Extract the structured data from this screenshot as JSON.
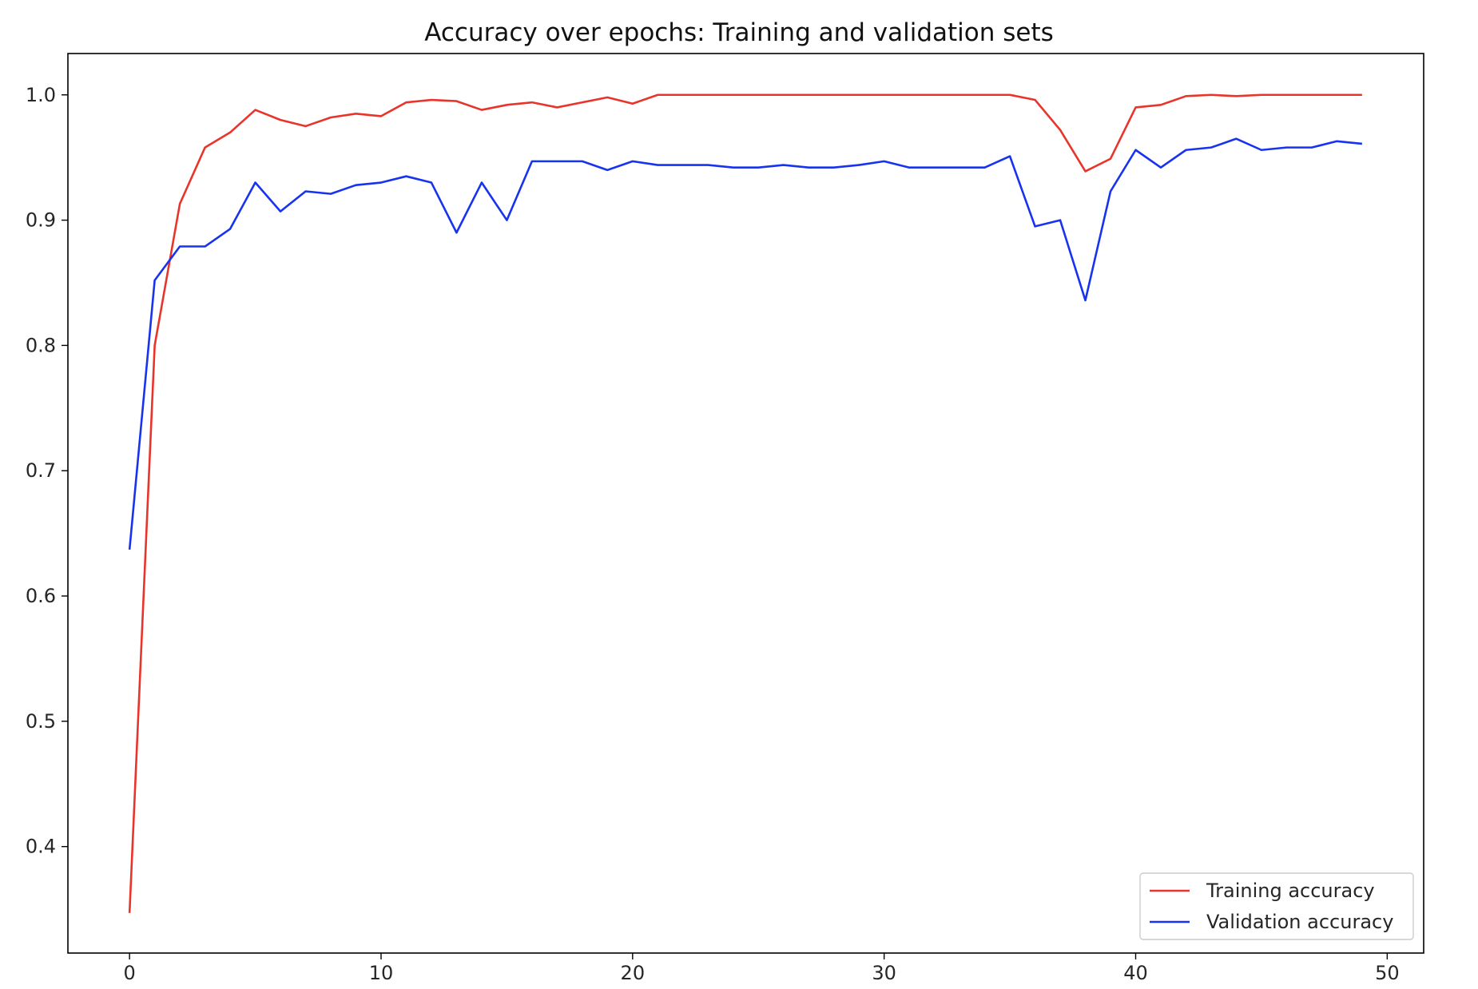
{
  "chart_data": {
    "type": "line",
    "title": "Accuracy over epochs: Training and validation sets",
    "xlabel": "",
    "ylabel": "",
    "xlim": [
      -2.45,
      51.45
    ],
    "ylim": [
      0.315,
      1.033
    ],
    "x_ticks": [
      0,
      10,
      20,
      30,
      40,
      50
    ],
    "y_ticks": [
      0.4,
      0.5,
      0.6,
      0.7,
      0.8,
      0.9,
      1.0
    ],
    "x_tick_labels": [
      "0",
      "10",
      "20",
      "30",
      "40",
      "50"
    ],
    "y_tick_labels": [
      "0.4",
      "0.5",
      "0.6",
      "0.7",
      "0.8",
      "0.9",
      "1.0"
    ],
    "grid": false,
    "legend_position": "lower-right",
    "x": [
      0,
      1,
      2,
      3,
      4,
      5,
      6,
      7,
      8,
      9,
      10,
      11,
      12,
      13,
      14,
      15,
      16,
      17,
      18,
      19,
      20,
      21,
      22,
      23,
      24,
      25,
      26,
      27,
      28,
      29,
      30,
      31,
      32,
      33,
      34,
      35,
      36,
      37,
      38,
      39,
      40,
      41,
      42,
      43,
      44,
      45,
      46,
      47,
      48,
      49
    ],
    "series": [
      {
        "name": "Training accuracy",
        "color": "#e8352b",
        "values": [
          0.347,
          0.8,
          0.913,
          0.958,
          0.97,
          0.988,
          0.98,
          0.975,
          0.982,
          0.985,
          0.983,
          0.994,
          0.996,
          0.995,
          0.988,
          0.992,
          0.994,
          0.99,
          0.994,
          0.998,
          0.993,
          1.0,
          1.0,
          1.0,
          1.0,
          1.0,
          1.0,
          1.0,
          1.0,
          1.0,
          1.0,
          1.0,
          1.0,
          1.0,
          1.0,
          1.0,
          0.996,
          0.972,
          0.939,
          0.949,
          0.99,
          0.992,
          0.999,
          1.0,
          0.999,
          1.0,
          1.0,
          1.0,
          1.0,
          1.0
        ]
      },
      {
        "name": "Validation accuracy",
        "color": "#1833f0",
        "values": [
          0.637,
          0.852,
          0.879,
          0.879,
          0.893,
          0.93,
          0.907,
          0.923,
          0.921,
          0.928,
          0.93,
          0.935,
          0.93,
          0.89,
          0.93,
          0.9,
          0.947,
          0.947,
          0.947,
          0.94,
          0.947,
          0.944,
          0.944,
          0.944,
          0.942,
          0.942,
          0.944,
          0.942,
          0.942,
          0.944,
          0.947,
          0.942,
          0.942,
          0.942,
          0.942,
          0.951,
          0.895,
          0.9,
          0.836,
          0.923,
          0.956,
          0.942,
          0.956,
          0.958,
          0.965,
          0.956,
          0.958,
          0.958,
          0.963,
          0.961
        ]
      }
    ]
  }
}
